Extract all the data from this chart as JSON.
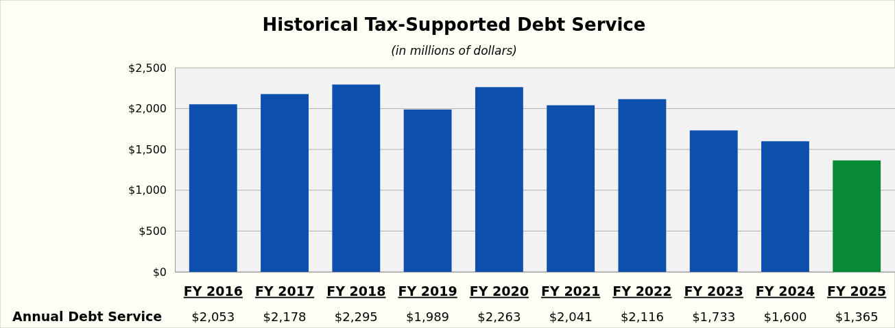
{
  "chart_data": {
    "type": "bar",
    "title": "Historical Tax-Supported Debt Service",
    "subtitle": "(in millions of dollars)",
    "categories": [
      "FY 2016",
      "FY 2017",
      "FY 2018",
      "FY 2019",
      "FY 2020",
      "FY 2021",
      "FY 2022",
      "FY 2023",
      "FY 2024",
      "FY 2025"
    ],
    "values": [
      2053,
      2178,
      2295,
      1989,
      2263,
      2041,
      2116,
      1733,
      1600,
      1365
    ],
    "colors": [
      "#0d4fad",
      "#0d4fad",
      "#0d4fad",
      "#0d4fad",
      "#0d4fad",
      "#0d4fad",
      "#0d4fad",
      "#0d4fad",
      "#0d4fad",
      "#088a36"
    ],
    "value_labels": [
      "$2,053",
      "$2,178",
      "$2,295",
      "$1,989",
      "$2,263",
      "$2,041",
      "$2,116",
      "$1,733",
      "$1,600",
      "$1,365"
    ],
    "annotations": [
      "Annual Debt Service"
    ],
    "ylim": [
      0,
      2500
    ],
    "yticks": [
      {
        "value": 0,
        "label": "$0"
      },
      {
        "value": 500,
        "label": "$500"
      },
      {
        "value": 1000,
        "label": "$1,000"
      },
      {
        "value": 1500,
        "label": "$1,500"
      },
      {
        "value": 2000,
        "label": "$2,000"
      },
      {
        "value": 2500,
        "label": "$2,500"
      }
    ],
    "grid": "y"
  }
}
